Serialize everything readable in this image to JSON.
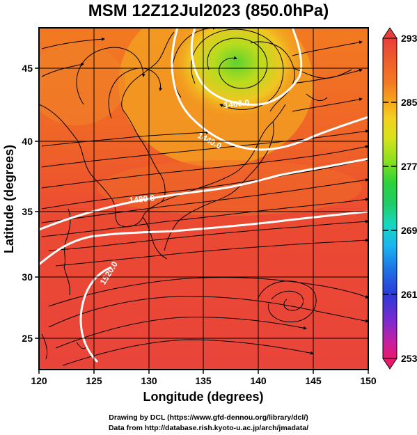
{
  "title": "MSM 12Z12Jul2023 (850.0hPa)",
  "axes": {
    "xlabel": "Longitude (degrees)",
    "ylabel": "Latitude  (degrees)",
    "xticks": [
      "120",
      "125",
      "130",
      "135",
      "140",
      "145",
      "150"
    ],
    "yticks": [
      "25",
      "30",
      "35",
      "40",
      "45"
    ],
    "xlim": [
      120,
      150
    ],
    "ylim": [
      22.4,
      47.6
    ]
  },
  "colorbar": {
    "labels": [
      "293",
      "285",
      "277",
      "269",
      "261",
      "253"
    ],
    "range": [
      253,
      293
    ],
    "colors": [
      "#e8186c",
      "#c81ea0",
      "#7a2ad0",
      "#2a3ad8",
      "#1e74e6",
      "#18b4f0",
      "#18d8c0",
      "#1ecc6a",
      "#2ed23a",
      "#8ee01e",
      "#d8e21a",
      "#f4d020",
      "#f7a81c",
      "#f47a22",
      "#ef5a2c",
      "#e93e3a"
    ]
  },
  "contours": {
    "labels": [
      "1400.0",
      "1440.0",
      "1480.0",
      "1520.0"
    ]
  },
  "credits": {
    "line1": "Drawing by DCL (https://www.gfd-dennou.org/library/dcl/)",
    "line2": "Data from http://database.rish.kyoto-u.ac.jp/arch/jmadata/"
  }
}
